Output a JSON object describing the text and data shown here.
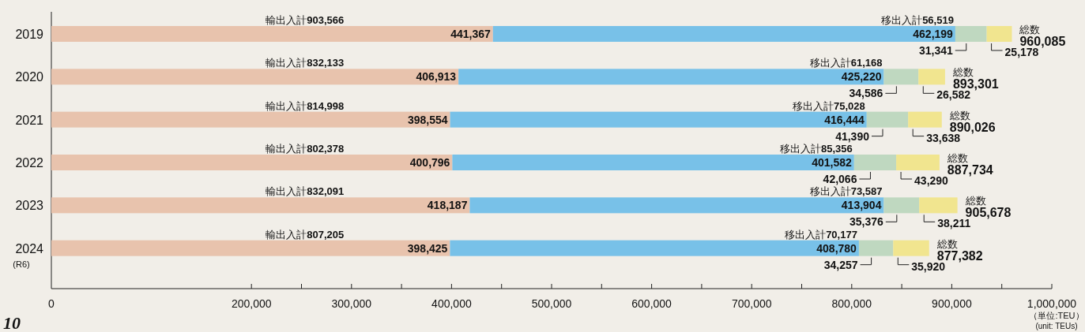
{
  "chart_data": {
    "type": "bar",
    "orientation": "horizontal",
    "stacked": true,
    "categories": [
      "2019",
      "2020",
      "2021",
      "2022",
      "2023",
      "2024"
    ],
    "series": [
      {
        "color": "#e8c3ad",
        "values": [
          441367,
          406913,
          398554,
          400796,
          418187,
          398425
        ],
        "value_labels": [
          "441,367",
          "406,913",
          "398,554",
          "400,796",
          "418,187",
          "398,425"
        ]
      },
      {
        "color": "#78c1e8",
        "values": [
          462199,
          425220,
          416444,
          401582,
          413904,
          408780
        ],
        "value_labels": [
          "462,199",
          "425,220",
          "416,444",
          "401,582",
          "413,904",
          "408,780"
        ]
      },
      {
        "color": "#bfd8c0",
        "values": [
          31341,
          34586,
          41390,
          42066,
          35376,
          34257
        ],
        "value_labels": [
          "31,341",
          "34,586",
          "41,390",
          "42,066",
          "35,376",
          "34,257"
        ]
      },
      {
        "color": "#f1e58f",
        "values": [
          25178,
          26582,
          33638,
          43290,
          38211,
          35920
        ],
        "value_labels": [
          "25,178",
          "26,582",
          "33,638",
          "43,290",
          "38,211",
          "35,920"
        ]
      }
    ],
    "totals": [
      "960,085",
      "893,301",
      "890,026",
      "887,734",
      "905,678",
      "877,382"
    ],
    "xlim": [
      0,
      1000000
    ],
    "xticks": [
      0,
      {
        "value": 200000,
        "label": "200,000"
      },
      {
        "value": 250000,
        "label": null
      },
      {
        "value": 300000,
        "label": "300,000"
      },
      {
        "value": 350000,
        "label": null
      },
      {
        "value": 400000,
        "label": "400,000"
      },
      {
        "value": 450000,
        "label": null
      },
      {
        "value": 500000,
        "label": "500,000"
      },
      {
        "value": 550000,
        "label": null
      },
      {
        "value": 600000,
        "label": "600,000"
      },
      {
        "value": 650000,
        "label": null
      },
      {
        "value": 700000,
        "label": "700,000"
      },
      {
        "value": 750000,
        "label": null
      },
      {
        "value": 800000,
        "label": "800,000"
      },
      {
        "value": 850000,
        "label": null
      },
      {
        "value": 900000,
        "label": "900,000"
      },
      {
        "value": 950000,
        "label": null
      },
      {
        "value": 1000000,
        "label": "1,000,000"
      }
    ],
    "annotations": [
      "輸出入計**903,566**",
      "移出入計**56,519**",
      "総数",
      "輸出入計**832,133**",
      "移出入計**61,168**",
      "総数",
      "輸出入計**814,998**",
      "移出入計**75,028**",
      "総数",
      "輸出入計**802,378**",
      "移出入計**85,356**",
      "総数",
      "輸出入計**832,091**",
      "移出入計**73,587**",
      "総数",
      "輸出入計**807,205**",
      "移出入計**70,177**",
      "総数",
      "(R6)",
      "（単位:TEU）",
      "(unit: TEUs)",
      "10"
    ]
  }
}
